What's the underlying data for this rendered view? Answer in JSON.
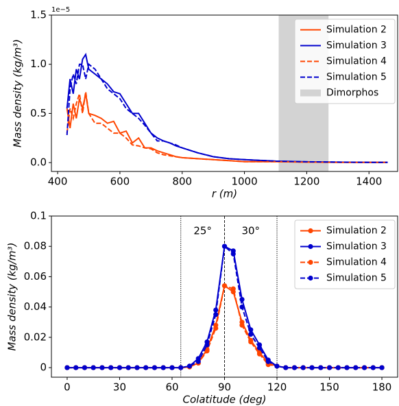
{
  "chart_data": [
    {
      "type": "line",
      "offset_label": "1e−5",
      "xlabel": "r (m)",
      "ylabel": "Mass density (kg/m³)",
      "x": [
        430,
        440,
        450,
        460,
        470,
        480,
        490,
        500,
        520,
        540,
        560,
        580,
        600,
        620,
        640,
        660,
        680,
        700,
        720,
        740,
        760,
        780,
        800,
        850,
        900,
        950,
        1000,
        1100,
        1200,
        1300,
        1400,
        1460
      ],
      "series": [
        {
          "name": "Simulation 2",
          "color": "#ff4500",
          "linestyle": "solid",
          "values": [
            0.55,
            0.35,
            0.6,
            0.45,
            0.65,
            0.55,
            0.7,
            0.5,
            0.48,
            0.45,
            0.4,
            0.42,
            0.3,
            0.32,
            0.2,
            0.25,
            0.15,
            0.15,
            0.12,
            0.1,
            0.08,
            0.06,
            0.05,
            0.04,
            0.03,
            0.02,
            0.01,
            0.01,
            0.005,
            0.003,
            0.002,
            0.002
          ]
        },
        {
          "name": "Simulation 3",
          "color": "#0000cd",
          "linestyle": "solid",
          "values": [
            0.55,
            0.85,
            0.7,
            0.95,
            0.85,
            1.05,
            1.1,
            0.95,
            0.9,
            0.85,
            0.8,
            0.72,
            0.7,
            0.6,
            0.5,
            0.5,
            0.4,
            0.3,
            0.25,
            0.22,
            0.2,
            0.17,
            0.15,
            0.1,
            0.06,
            0.04,
            0.03,
            0.015,
            0.008,
            0.005,
            0.003,
            0.003
          ]
        },
        {
          "name": "Simulation 4",
          "color": "#ff4500",
          "linestyle": "dashed",
          "values": [
            0.3,
            0.55,
            0.45,
            0.6,
            0.7,
            0.5,
            0.72,
            0.5,
            0.4,
            0.4,
            0.35,
            0.3,
            0.3,
            0.25,
            0.18,
            0.17,
            0.15,
            0.14,
            0.1,
            0.08,
            0.07,
            0.06,
            0.05,
            0.04,
            0.03,
            0.02,
            0.01,
            0.01,
            0.005,
            0.003,
            0.002,
            0.002
          ]
        },
        {
          "name": "Simulation 5",
          "color": "#0000cd",
          "linestyle": "dashed",
          "values": [
            0.28,
            0.75,
            0.9,
            0.8,
            1.0,
            1.0,
            0.85,
            1.0,
            0.95,
            0.85,
            0.75,
            0.7,
            0.65,
            0.55,
            0.5,
            0.45,
            0.38,
            0.3,
            0.22,
            0.22,
            0.2,
            0.18,
            0.15,
            0.1,
            0.06,
            0.04,
            0.03,
            0.015,
            0.008,
            0.005,
            0.003,
            0.003
          ]
        }
      ],
      "span": {
        "name": "Dimorphos",
        "xmin": 1110,
        "xmax": 1270,
        "color": "#d3d3d3"
      },
      "xlim": [
        380,
        1492
      ],
      "xticks": [
        400,
        600,
        800,
        1000,
        1200,
        1400
      ],
      "ylim": [
        -0.09,
        1.5
      ],
      "yticks": [
        {
          "value": 0,
          "label": "0.0"
        },
        {
          "value": 0.5,
          "label": "0.5"
        },
        {
          "value": 1,
          "label": "1.0"
        },
        {
          "value": 1.5,
          "label": "1.5"
        }
      ],
      "legend": "upper right"
    },
    {
      "type": "line",
      "xlabel": "Colatitude (deg)",
      "ylabel": "Mass density (kg/m³)",
      "marker": "circle",
      "x": [
        0,
        5,
        10,
        15,
        20,
        25,
        30,
        35,
        40,
        45,
        50,
        55,
        60,
        65,
        70,
        75,
        80,
        85,
        90,
        95,
        100,
        105,
        110,
        115,
        120,
        125,
        130,
        135,
        140,
        145,
        150,
        155,
        160,
        165,
        170,
        175,
        180
      ],
      "series": [
        {
          "name": "Simulation 2",
          "color": "#ff4500",
          "linestyle": "solid",
          "values": [
            0,
            0,
            0,
            0,
            0,
            0,
            0,
            0,
            0,
            0,
            0,
            0,
            0,
            0,
            0.0005,
            0.003,
            0.012,
            0.028,
            0.054,
            0.05,
            0.03,
            0.018,
            0.01,
            0.003,
            0.001,
            0,
            0,
            0,
            0,
            0,
            0,
            0,
            0,
            0,
            0,
            0,
            0
          ]
        },
        {
          "name": "Simulation 3",
          "color": "#0000cd",
          "linestyle": "solid",
          "values": [
            0,
            0,
            0,
            0,
            0,
            0,
            0,
            0,
            0,
            0,
            0,
            0,
            0,
            0,
            0.001,
            0.006,
            0.017,
            0.038,
            0.08,
            0.077,
            0.045,
            0.025,
            0.015,
            0.005,
            0.001,
            0,
            0,
            0,
            0,
            0,
            0,
            0,
            0,
            0,
            0,
            0,
            0
          ]
        },
        {
          "name": "Simulation 4",
          "color": "#ff4500",
          "linestyle": "dashed",
          "values": [
            0,
            0,
            0,
            0,
            0,
            0,
            0,
            0,
            0,
            0,
            0,
            0,
            0,
            0,
            0.0005,
            0.003,
            0.011,
            0.026,
            0.054,
            0.052,
            0.028,
            0.017,
            0.009,
            0.002,
            0.001,
            0,
            0,
            0,
            0,
            0,
            0,
            0,
            0,
            0,
            0,
            0,
            0
          ]
        },
        {
          "name": "Simulation 5",
          "color": "#0000cd",
          "linestyle": "dashed",
          "values": [
            0,
            0,
            0,
            0,
            0,
            0,
            0,
            0,
            0,
            0,
            0,
            0,
            0,
            0,
            0.001,
            0.004,
            0.015,
            0.035,
            0.08,
            0.075,
            0.04,
            0.022,
            0.013,
            0.004,
            0.001,
            0,
            0,
            0,
            0,
            0,
            0,
            0,
            0,
            0,
            0,
            0,
            0
          ]
        }
      ],
      "vlines": [
        65,
        90,
        120
      ],
      "annotations": [
        "25°",
        "30°"
      ],
      "xlim": [
        -9,
        189
      ],
      "xticks": [
        0,
        30,
        60,
        90,
        120,
        150,
        180
      ],
      "ylim": [
        -0.0063,
        0.1
      ],
      "yticks": [
        0,
        0.02,
        0.04,
        0.06,
        0.08,
        0.1
      ],
      "legend": "upper right"
    }
  ]
}
